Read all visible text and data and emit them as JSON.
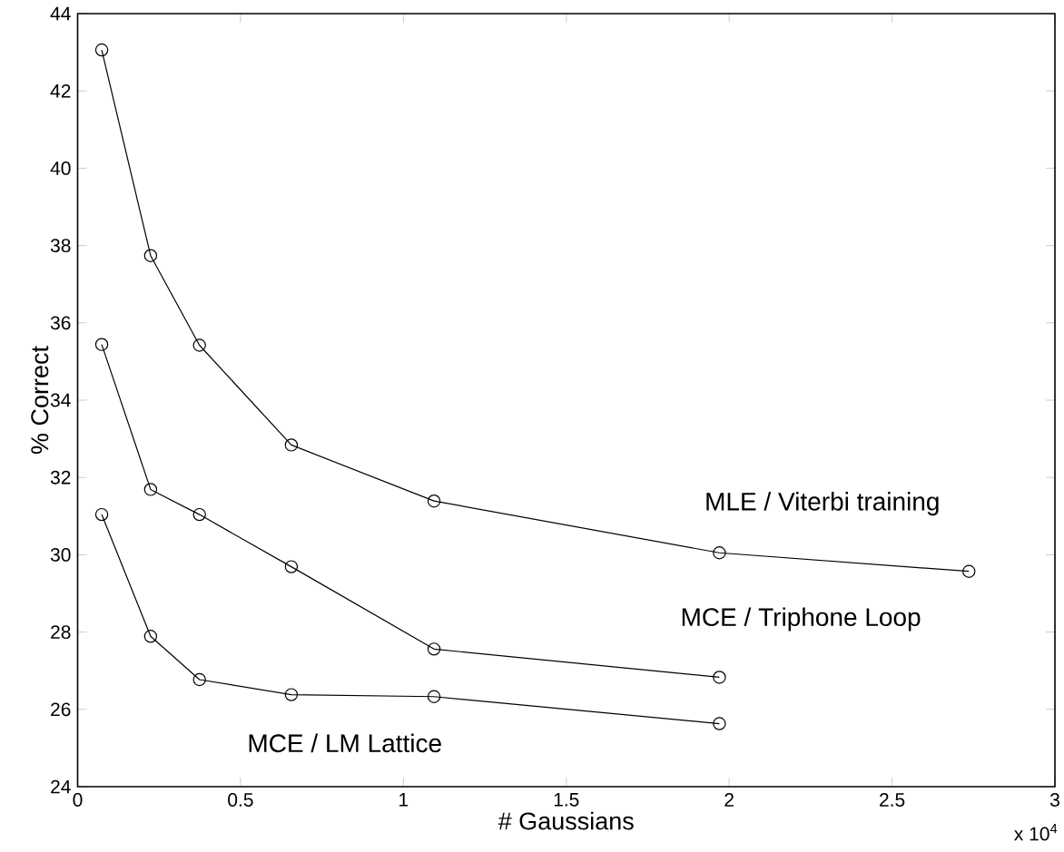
{
  "chart_data": {
    "type": "line",
    "xlabel": "# Gaussians",
    "ylabel": "% Correct",
    "annotations": [
      "x 10$^{4}$"
    ],
    "series": [
      {
        "name": "MLE / Viterbi training",
        "color": "#000000",
        "x": [
          0.074,
          0.224,
          0.374,
          0.656,
          1.094,
          1.97,
          2.736
        ],
        "values": [
          43.06,
          37.74,
          35.42,
          32.84,
          31.39,
          30.05,
          29.57
        ]
      },
      {
        "name": "MCE / Triphone Loop",
        "color": "#000000",
        "x": [
          0.074,
          0.224,
          0.374,
          0.656,
          1.094,
          1.97
        ],
        "values": [
          35.44,
          31.69,
          31.04,
          29.69,
          27.56,
          26.83
        ]
      },
      {
        "name": "MCE / LM Lattice",
        "color": "#000000",
        "x": [
          0.074,
          0.224,
          0.374,
          0.656,
          1.094,
          1.97
        ],
        "values": [
          31.04,
          27.89,
          26.77,
          26.38,
          26.33,
          25.63
        ]
      }
    ],
    "xlim": [
      0,
      3
    ],
    "ylim": [
      24,
      44
    ],
    "xticks": [
      0,
      0.5,
      1,
      1.5,
      2,
      2.5,
      3
    ],
    "yticks": [
      24,
      26,
      28,
      30,
      32,
      34,
      36,
      38,
      40,
      42,
      44
    ],
    "marker": "circle",
    "line_style": "solid",
    "grid": false,
    "legend": false
  }
}
